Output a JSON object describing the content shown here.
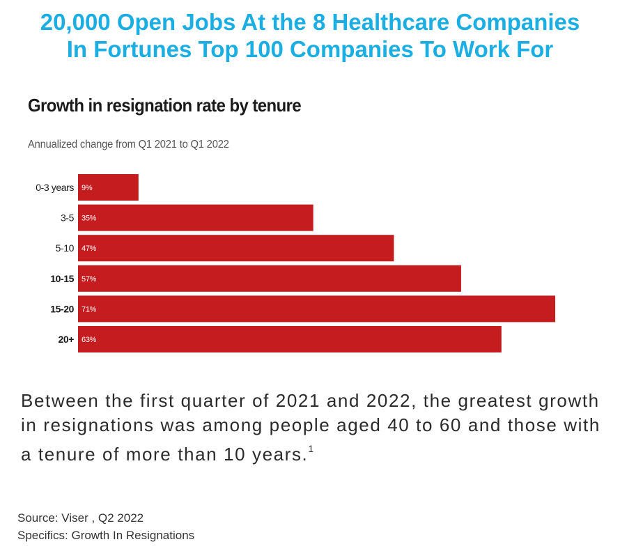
{
  "headline": {
    "line1": "20,000 Open Jobs At the 8 Healthcare Companies",
    "line2": "In Fortunes Top 100 Companies To Work For"
  },
  "description": {
    "text": "Between the first quarter of 2021 and 2022, the greatest growth in resignations was among people aged 40 to 60 and those with a tenure of more than 10 years.",
    "footnote": "1"
  },
  "source": {
    "line1": "Source: Viser , Q2 2022",
    "line2": "Specifics: Growth In Resignations"
  },
  "chart_data": {
    "type": "bar",
    "orientation": "horizontal",
    "title": "Growth in resignation rate by tenure",
    "subtitle": "Annualized change from Q1 2021 to Q1 2022",
    "categories": [
      "0-3 years",
      "3-5",
      "5-10",
      "10-15",
      "15-20",
      "20+"
    ],
    "values": [
      9,
      35,
      47,
      57,
      71,
      63
    ],
    "value_labels": [
      "9%",
      "35%",
      "47%",
      "57%",
      "71%",
      "63%"
    ],
    "bold_categories": [
      "10-15",
      "15-20",
      "20+"
    ],
    "xlim": [
      0,
      71
    ],
    "grid": false,
    "legend": "none",
    "bar_color": "#c41c1f",
    "label_color": "#ffffff"
  }
}
